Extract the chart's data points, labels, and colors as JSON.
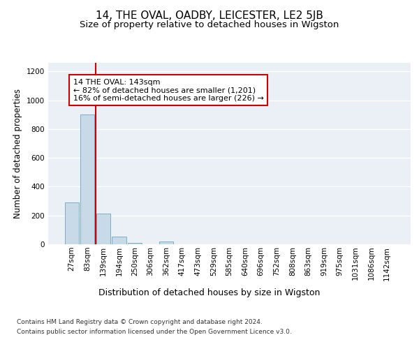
{
  "title1": "14, THE OVAL, OADBY, LEICESTER, LE2 5JB",
  "title2": "Size of property relative to detached houses in Wigston",
  "xlabel": "Distribution of detached houses by size in Wigston",
  "ylabel": "Number of detached properties",
  "bar_color": "#c8d9e8",
  "bar_edge_color": "#7aafc8",
  "background_color": "#eaf0f6",
  "grid_color": "#ffffff",
  "categories": [
    "27sqm",
    "83sqm",
    "139sqm",
    "194sqm",
    "250sqm",
    "306sqm",
    "362sqm",
    "417sqm",
    "473sqm",
    "529sqm",
    "585sqm",
    "640sqm",
    "696sqm",
    "752sqm",
    "808sqm",
    "863sqm",
    "919sqm",
    "975sqm",
    "1031sqm",
    "1086sqm",
    "1142sqm"
  ],
  "values": [
    290,
    900,
    215,
    55,
    10,
    0,
    20,
    0,
    0,
    0,
    0,
    0,
    0,
    0,
    0,
    0,
    0,
    0,
    0,
    0,
    0
  ],
  "ylim": [
    0,
    1260
  ],
  "yticks": [
    0,
    200,
    400,
    600,
    800,
    1000,
    1200
  ],
  "red_line_x": 1.5,
  "annotation_text": "14 THE OVAL: 143sqm\n← 82% of detached houses are smaller (1,201)\n16% of semi-detached houses are larger (226) →",
  "annotation_box_color": "#ffffff",
  "annotation_box_edge_color": "#cc0000",
  "red_line_color": "#cc0000",
  "footer_line1": "Contains HM Land Registry data © Crown copyright and database right 2024.",
  "footer_line2": "Contains public sector information licensed under the Open Government Licence v3.0.",
  "title1_fontsize": 11,
  "title2_fontsize": 9.5,
  "xlabel_fontsize": 9,
  "ylabel_fontsize": 8.5,
  "tick_fontsize": 7.5,
  "annotation_fontsize": 8,
  "footer_fontsize": 6.5
}
